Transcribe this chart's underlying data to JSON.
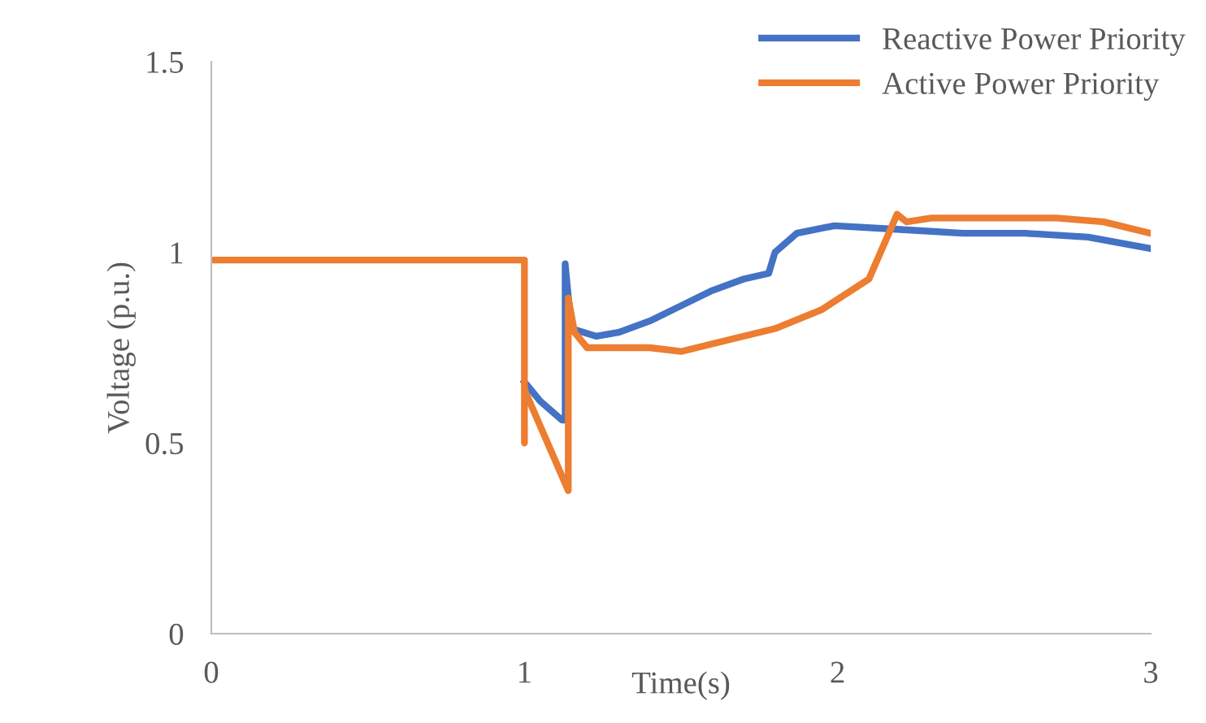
{
  "chart_data": {
    "type": "line",
    "xlabel": "Time(s)",
    "ylabel": "Voltage (p.u.)",
    "xlim": [
      0,
      3
    ],
    "xticks": [
      0,
      1,
      2,
      3
    ],
    "ylim": [
      0,
      1.5
    ],
    "yticks": [
      0,
      0.5,
      1,
      1.5
    ],
    "grid": false,
    "legend": "top right",
    "line_style": "solid",
    "marker": "none",
    "series": [
      {
        "name": "Reactive Power Priority",
        "color": "#4472c4",
        "x": [
          1.0,
          1.05,
          1.12,
          1.13,
          1.13,
          1.15,
          1.23,
          1.3,
          1.4,
          1.5,
          1.6,
          1.7,
          1.78,
          1.8,
          1.87,
          1.99,
          2.2,
          2.4,
          2.6,
          2.8,
          3.0
        ],
        "values": [
          0.66,
          0.61,
          0.56,
          0.56,
          0.97,
          0.8,
          0.78,
          0.79,
          0.82,
          0.86,
          0.9,
          0.93,
          0.945,
          1.0,
          1.05,
          1.07,
          1.06,
          1.05,
          1.05,
          1.04,
          1.01
        ]
      },
      {
        "name": "Active Power Priority",
        "color": "#ed7d31",
        "x": [
          0,
          1.0,
          1.0,
          1.0,
          1.14,
          1.14,
          1.16,
          1.2,
          1.4,
          1.5,
          1.6,
          1.8,
          1.95,
          2.1,
          2.19,
          2.22,
          2.3,
          2.5,
          2.7,
          2.85,
          3.0
        ],
        "values": [
          0.98,
          0.98,
          0.5,
          0.64,
          0.375,
          0.88,
          0.79,
          0.75,
          0.75,
          0.74,
          0.76,
          0.8,
          0.85,
          0.93,
          1.1,
          1.08,
          1.09,
          1.09,
          1.09,
          1.08,
          1.05
        ]
      }
    ]
  }
}
